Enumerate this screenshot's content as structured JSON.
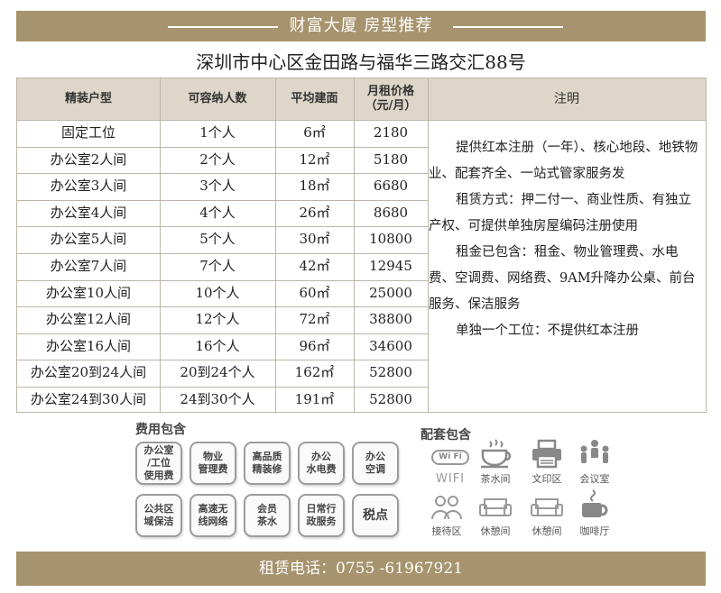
{
  "banner": {
    "title": "财富大厦 房型推荐"
  },
  "address": "深圳市中心区金田路与福华三路交汇88号",
  "table": {
    "headers": {
      "type": "精装户型",
      "capacity": "可容纳人数",
      "area": "平均建面",
      "price_line1": "月租价格",
      "price_line2": "（元/月）",
      "note": "注明"
    },
    "rows": [
      {
        "type": "固定工位",
        "capacity": "1个人",
        "area": "6㎡",
        "price": "2180"
      },
      {
        "type": "办公室2人间",
        "capacity": "2个人",
        "area": "12㎡",
        "price": "5180"
      },
      {
        "type": "办公室3人间",
        "capacity": "3个人",
        "area": "18㎡",
        "price": "6680"
      },
      {
        "type": "办公室4人间",
        "capacity": "4个人",
        "area": "26㎡",
        "price": "8680"
      },
      {
        "type": "办公室5人间",
        "capacity": "5个人",
        "area": "30㎡",
        "price": "10800"
      },
      {
        "type": "办公室7人间",
        "capacity": "7个人",
        "area": "42㎡",
        "price": "12945"
      },
      {
        "type": "办公室10人间",
        "capacity": "10个人",
        "area": "60㎡",
        "price": "25000"
      },
      {
        "type": "办公室12人间",
        "capacity": "12个人",
        "area": "72㎡",
        "price": "38800"
      },
      {
        "type": "办公室16人间",
        "capacity": "16个人",
        "area": "96㎡",
        "price": "34600"
      },
      {
        "type": "办公室20到24人间",
        "capacity": "20到24个人",
        "area": "162㎡",
        "price": "52800"
      },
      {
        "type": "办公室24到30人间",
        "capacity": "24到30个人",
        "area": "191㎡",
        "price": "52800"
      }
    ],
    "notes": [
      "提供红本注册（一年）、核心地段、地铁物业、配套齐全、一站式管家服务发",
      "租赁方式：押二付一、商业性质、有独立产权、可提供单独房屋编码注册使用",
      "租金已包含：租金、物业管理费、水电费、空调费、网络费、9AM升降办公桌、前台服务、保洁服务",
      "单独一个工位：不提供红本注册"
    ]
  },
  "fees": {
    "title": "费用包含",
    "items": [
      [
        "办公室",
        "/工位",
        "使用费"
      ],
      [
        "物业",
        "管理费"
      ],
      [
        "高品质",
        "精装修"
      ],
      [
        "办公",
        "水电费"
      ],
      [
        "办公",
        "空调"
      ],
      [
        "公共区",
        "域保洁"
      ],
      [
        "高速无",
        "线网络"
      ],
      [
        "会员",
        "茶水"
      ],
      [
        "日常行",
        "政服务"
      ],
      [
        "税点"
      ]
    ]
  },
  "facilities": {
    "title": "配套包含",
    "wifi_badge": "Wi Fi",
    "items": [
      "WIFI",
      "茶水间",
      "文印区",
      "会议室",
      "接待区",
      "休憩间",
      "休憩间",
      "咖啡厅"
    ]
  },
  "footer": {
    "phone": "租赁电话：0755 -61967921"
  }
}
